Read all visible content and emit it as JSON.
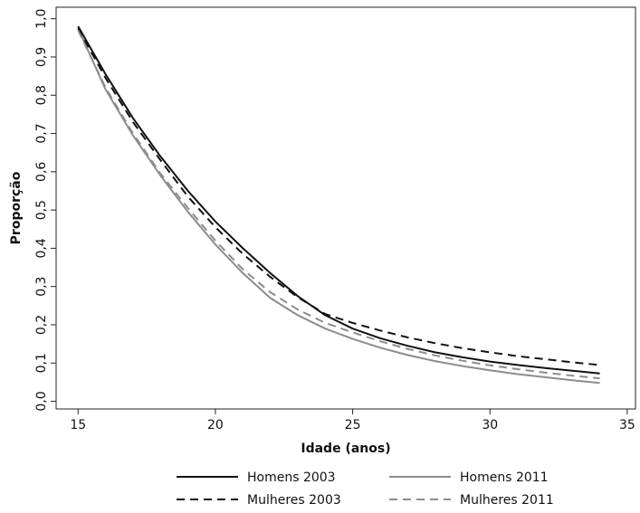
{
  "chart_data": {
    "type": "line",
    "xlabel": "Idade (anos)",
    "ylabel": "Proporção",
    "xlim": [
      14.2,
      35.3
    ],
    "ylim": [
      -0.02,
      1.03
    ],
    "xticks": [
      15,
      20,
      25,
      30,
      35
    ],
    "xtick_labels": [
      "15",
      "20",
      "25",
      "30",
      "35"
    ],
    "yticks": [
      0.0,
      0.1,
      0.2,
      0.3,
      0.4,
      0.5,
      0.6,
      0.7,
      0.8,
      0.9,
      1.0
    ],
    "ytick_labels": [
      "0,0",
      "0,1",
      "0,2",
      "0,3",
      "0,4",
      "0,5",
      "0,6",
      "0,7",
      "0,8",
      "0,9",
      "1,0"
    ],
    "grid": false,
    "legend_position": "bottom",
    "x": [
      15,
      16,
      17,
      18,
      19,
      20,
      21,
      22,
      23,
      24,
      25,
      26,
      27,
      28,
      29,
      30,
      31,
      32,
      33,
      34
    ],
    "series": [
      {
        "name": "Homens 2003",
        "color": "#111111",
        "dash": "solid",
        "values": [
          0.98,
          0.855,
          0.74,
          0.64,
          0.55,
          0.47,
          0.4,
          0.335,
          0.275,
          0.225,
          0.19,
          0.165,
          0.145,
          0.128,
          0.115,
          0.104,
          0.095,
          0.087,
          0.08,
          0.073
        ]
      },
      {
        "name": "Homens 2011",
        "color": "#8c8c8c",
        "dash": "solid",
        "values": [
          0.975,
          0.815,
          0.695,
          0.59,
          0.495,
          0.41,
          0.335,
          0.27,
          0.225,
          0.19,
          0.163,
          0.14,
          0.121,
          0.105,
          0.092,
          0.081,
          0.071,
          0.063,
          0.055,
          0.048
        ]
      },
      {
        "name": "Mulheres 2003",
        "color": "#111111",
        "dash": "dashed",
        "values": [
          0.975,
          0.845,
          0.73,
          0.63,
          0.535,
          0.455,
          0.385,
          0.325,
          0.272,
          0.228,
          0.205,
          0.185,
          0.167,
          0.152,
          0.139,
          0.128,
          0.118,
          0.11,
          0.102,
          0.095
        ]
      },
      {
        "name": "Mulheres 2011",
        "color": "#8c8c8c",
        "dash": "dashed",
        "values": [
          0.97,
          0.82,
          0.7,
          0.595,
          0.505,
          0.42,
          0.345,
          0.285,
          0.24,
          0.205,
          0.18,
          0.157,
          0.137,
          0.12,
          0.106,
          0.094,
          0.084,
          0.075,
          0.067,
          0.06
        ]
      }
    ]
  }
}
